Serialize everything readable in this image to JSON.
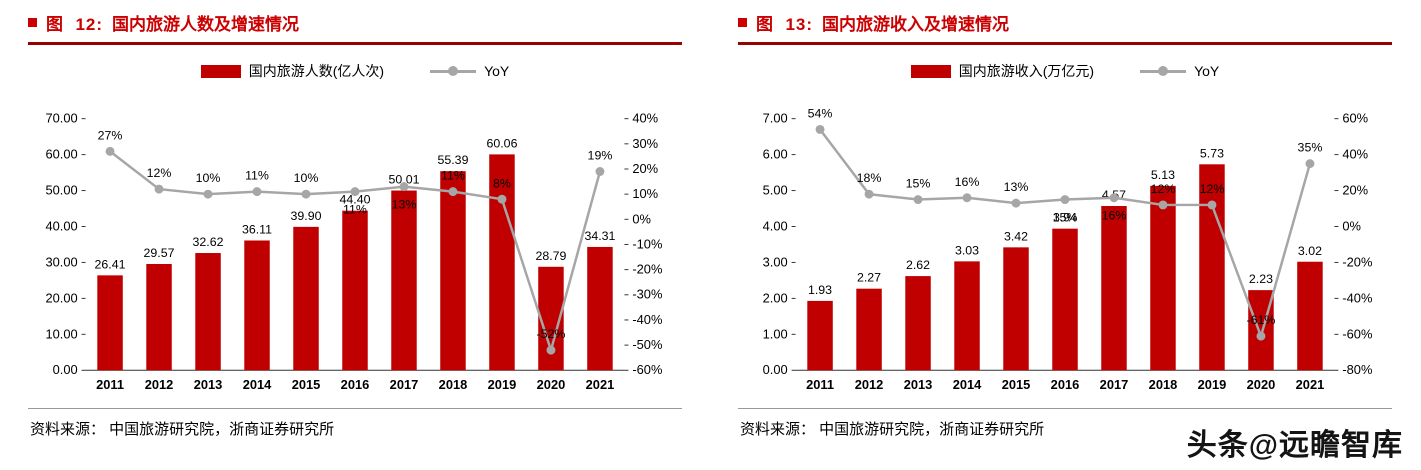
{
  "colors": {
    "bar": "#c00000",
    "line": "#a6a6a6",
    "title": "#cc0000",
    "title_rule": "#990000"
  },
  "panels": [
    {
      "title_prefix": "图  12:",
      "title": "国内旅游人数及增速情况",
      "source": "资料来源：  中国旅游研究院，浙商证券研究所"
    },
    {
      "title_prefix": "图  13:",
      "title": "国内旅游收入及增速情况",
      "source": "资料来源：  中国旅游研究院，浙商证券研究所"
    }
  ],
  "watermark": "头条@远瞻智库",
  "chart_data": [
    {
      "type": "bar+line",
      "title": "国内旅游人数及增速情况",
      "categories": [
        "2011",
        "2012",
        "2013",
        "2014",
        "2015",
        "2016",
        "2017",
        "2018",
        "2019",
        "2020",
        "2021"
      ],
      "series": [
        {
          "name": "国内旅游人数(亿人次)",
          "type": "bar",
          "axis": "left",
          "values": [
            26.41,
            29.57,
            32.62,
            36.11,
            39.9,
            44.4,
            50.01,
            55.39,
            60.06,
            28.79,
            34.31
          ]
        },
        {
          "name": "YoY",
          "type": "line",
          "axis": "right",
          "unit": "%",
          "values": [
            27,
            12,
            10,
            11,
            10,
            11,
            13,
            11,
            8,
            -52,
            19
          ]
        }
      ],
      "left_axis": {
        "min": 0,
        "max": 70,
        "step": 10,
        "decimals": 2
      },
      "right_axis": {
        "min": -60,
        "max": 40,
        "step": 10,
        "suffix": "%"
      },
      "legend_position": "top",
      "grid": false
    },
    {
      "type": "bar+line",
      "title": "国内旅游收入及增速情况",
      "categories": [
        "2011",
        "2012",
        "2013",
        "2014",
        "2015",
        "2016",
        "2017",
        "2018",
        "2019",
        "2020",
        "2021"
      ],
      "series": [
        {
          "name": "国内旅游收入(万亿元)",
          "type": "bar",
          "axis": "left",
          "values": [
            1.93,
            2.27,
            2.62,
            3.03,
            3.42,
            3.94,
            4.57,
            5.13,
            5.73,
            2.23,
            3.02
          ]
        },
        {
          "name": "YoY",
          "type": "line",
          "axis": "right",
          "unit": "%",
          "values": [
            54,
            18,
            15,
            16,
            13,
            15,
            16,
            12,
            12,
            -61,
            35
          ]
        }
      ],
      "left_axis": {
        "min": 0,
        "max": 7,
        "step": 1,
        "decimals": 2
      },
      "right_axis": {
        "min": -80,
        "max": 60,
        "step": 20,
        "suffix": "%"
      },
      "legend_position": "top",
      "grid": false
    }
  ]
}
